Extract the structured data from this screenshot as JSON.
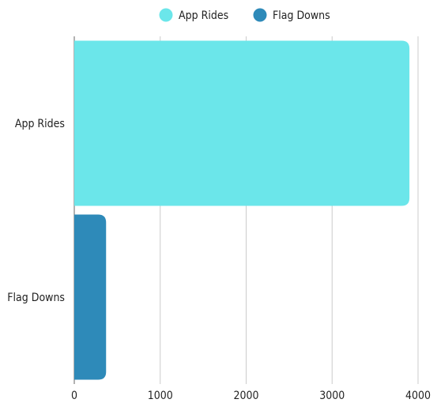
{
  "chart_data": {
    "type": "bar",
    "orientation": "horizontal",
    "categories": [
      "App Rides",
      "Flag Downs"
    ],
    "series": [
      {
        "name": "App Rides",
        "values": [
          3900,
          null
        ],
        "color": "#6be6ea"
      },
      {
        "name": "Flag Downs",
        "values": [
          null,
          370
        ],
        "color": "#2e8ab9"
      }
    ],
    "x_ticks": [
      "0",
      "1000",
      "2000",
      "3000",
      "4000"
    ],
    "xlim": [
      0,
      4000
    ],
    "grid": "vertical",
    "legend": "top-center"
  }
}
